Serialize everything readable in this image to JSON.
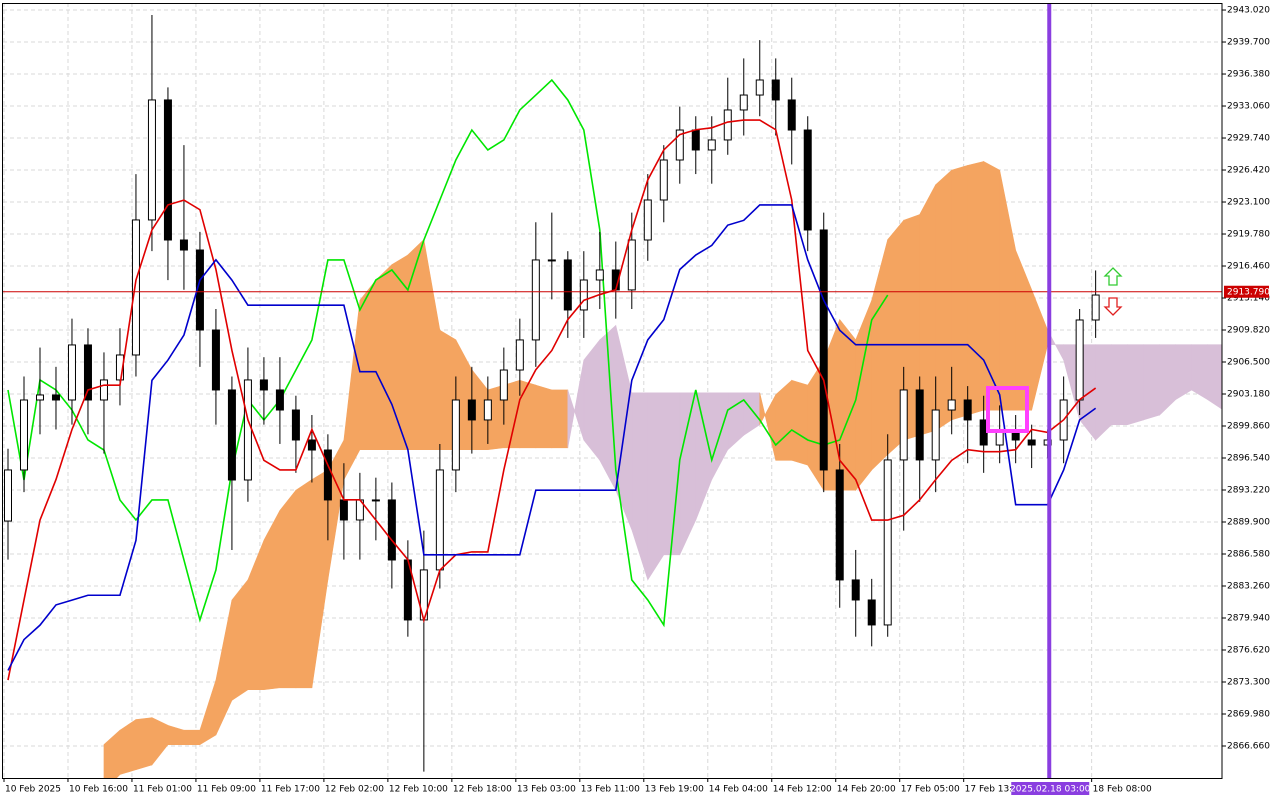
{
  "chart_data": {
    "type": "candlestick",
    "xlim": [
      -0.5,
      75.9
    ],
    "ylim": [
      2863.34,
      2944.06
    ],
    "grid": true,
    "up_color": "#ffffff",
    "down_color": "#000000",
    "wick_color": "#000000",
    "yticks": [
      {
        "value": 2943.02,
        "label": "2943.020"
      },
      {
        "value": 2939.7,
        "label": "2939.700"
      },
      {
        "value": 2936.38,
        "label": "2936.380"
      },
      {
        "value": 2933.06,
        "label": "2933.060"
      },
      {
        "value": 2929.74,
        "label": "2929.740"
      },
      {
        "value": 2926.42,
        "label": "2926.420"
      },
      {
        "value": 2923.1,
        "label": "2923.100"
      },
      {
        "value": 2919.78,
        "label": "2919.780"
      },
      {
        "value": 2916.46,
        "label": "2916.460"
      },
      {
        "value": 2913.14,
        "label": "2913.140"
      },
      {
        "value": 2909.82,
        "label": "2909.820"
      },
      {
        "value": 2906.5,
        "label": "2906.500"
      },
      {
        "value": 2903.18,
        "label": "2903.180"
      },
      {
        "value": 2899.86,
        "label": "2899.860"
      },
      {
        "value": 2896.54,
        "label": "2896.540"
      },
      {
        "value": 2893.22,
        "label": "2893.220"
      },
      {
        "value": 2889.9,
        "label": "2889.900"
      },
      {
        "value": 2886.58,
        "label": "2886.580"
      },
      {
        "value": 2883.26,
        "label": "2883.260"
      },
      {
        "value": 2879.94,
        "label": "2879.940"
      },
      {
        "value": 2876.62,
        "label": "2876.620"
      },
      {
        "value": 2873.3,
        "label": "2873.300"
      },
      {
        "value": 2869.98,
        "label": "2869.980"
      },
      {
        "value": 2866.66,
        "label": "2866.660"
      }
    ],
    "xticks": [
      {
        "value": -0.25,
        "label": "10 Feb 2025"
      },
      {
        "value": 3.75,
        "label": "10 Feb 16:00"
      },
      {
        "value": 7.75,
        "label": "11 Feb 01:00"
      },
      {
        "value": 11.75,
        "label": "11 Feb 09:00"
      },
      {
        "value": 15.75,
        "label": "11 Feb 17:00"
      },
      {
        "value": 19.75,
        "label": "12 Feb 02:00"
      },
      {
        "value": 23.75,
        "label": "12 Feb 10:00"
      },
      {
        "value": 27.75,
        "label": "12 Feb 18:00"
      },
      {
        "value": 31.75,
        "label": "13 Feb 03:00"
      },
      {
        "value": 35.75,
        "label": "13 Feb 11:00"
      },
      {
        "value": 39.75,
        "label": "13 Feb 19:00"
      },
      {
        "value": 43.75,
        "label": "14 Feb 04:00"
      },
      {
        "value": 47.75,
        "label": "14 Feb 12:00"
      },
      {
        "value": 51.75,
        "label": "14 Feb 20:00"
      },
      {
        "value": 55.75,
        "label": "17 Feb 05:00"
      },
      {
        "value": 59.75,
        "label": "17 Feb 13:00"
      },
      {
        "value": 67.75,
        "label": "18 Feb 08:00"
      }
    ],
    "ohlc": [
      [
        2890.0,
        2897.5,
        2886.0,
        2895.3
      ],
      [
        2895.3,
        2905.0,
        2893.0,
        2902.56
      ],
      [
        2902.56,
        2908.0,
        2899.0,
        2903.08
      ],
      [
        2903.08,
        2906.0,
        2899.5,
        2902.56
      ],
      [
        2902.56,
        2911.0,
        2900.0,
        2908.27
      ],
      [
        2908.27,
        2910.0,
        2899.0,
        2902.56
      ],
      [
        2902.56,
        2907.5,
        2897.0,
        2904.64
      ],
      [
        2904.64,
        2910.0,
        2902.0,
        2907.23
      ],
      [
        2907.23,
        2926.0,
        2905.0,
        2921.24
      ],
      [
        2921.24,
        2942.5,
        2918.0,
        2933.69
      ],
      [
        2933.69,
        2935.0,
        2915.0,
        2919.16
      ],
      [
        2919.16,
        2929.0,
        2914.0,
        2918.12
      ],
      [
        2918.12,
        2920.0,
        2906.0,
        2909.82
      ],
      [
        2909.82,
        2912.0,
        2900.0,
        2903.6
      ],
      [
        2903.6,
        2905.0,
        2887.0,
        2894.26
      ],
      [
        2894.26,
        2908.0,
        2892.0,
        2904.64
      ],
      [
        2904.64,
        2907.0,
        2900.0,
        2903.6
      ],
      [
        2903.6,
        2907.0,
        2898.0,
        2901.52
      ],
      [
        2901.52,
        2903.0,
        2895.0,
        2898.41
      ],
      [
        2898.41,
        2901.0,
        2894.0,
        2897.37
      ],
      [
        2897.37,
        2899.0,
        2888.0,
        2892.19
      ],
      [
        2892.19,
        2896.0,
        2886.0,
        2890.11
      ],
      [
        2890.11,
        2895.0,
        2886.0,
        2892.19
      ],
      [
        2892.19,
        2894.5,
        2888.0,
        2892.19
      ],
      [
        2892.19,
        2894.0,
        2883.0,
        2885.96
      ],
      [
        2885.96,
        2888.0,
        2878.0,
        2879.74
      ],
      [
        2879.74,
        2889.0,
        2864.0,
        2884.93
      ],
      [
        2884.93,
        2898.0,
        2883.0,
        2895.3
      ],
      [
        2895.3,
        2905.0,
        2893.0,
        2902.56
      ],
      [
        2902.56,
        2906.0,
        2897.0,
        2900.49
      ],
      [
        2900.49,
        2905.0,
        2898.0,
        2902.56
      ],
      [
        2902.56,
        2908.0,
        2900.0,
        2905.67
      ],
      [
        2905.67,
        2911.0,
        2903.0,
        2908.79
      ],
      [
        2908.79,
        2921.0,
        2906.0,
        2917.09
      ],
      [
        2917.09,
        2922.0,
        2913.0,
        2917.09
      ],
      [
        2917.09,
        2918.0,
        2909.0,
        2911.9
      ],
      [
        2911.9,
        2918.0,
        2909.0,
        2915.01
      ],
      [
        2915.01,
        2920.0,
        2912.0,
        2916.05
      ],
      [
        2916.05,
        2919.0,
        2911.0,
        2913.98
      ],
      [
        2913.98,
        2922.0,
        2912.0,
        2919.16
      ],
      [
        2919.16,
        2926.0,
        2917.0,
        2923.31
      ],
      [
        2923.31,
        2929.0,
        2921.0,
        2927.46
      ],
      [
        2927.46,
        2933.0,
        2925.0,
        2930.57
      ],
      [
        2930.57,
        2932.0,
        2926.0,
        2928.5
      ],
      [
        2928.5,
        2932.0,
        2925.0,
        2929.54
      ],
      [
        2929.54,
        2936.0,
        2928.0,
        2932.65
      ],
      [
        2932.65,
        2938.0,
        2930.0,
        2934.2
      ],
      [
        2934.2,
        2939.9,
        2932.0,
        2935.76
      ],
      [
        2935.76,
        2938.0,
        2930.0,
        2933.69
      ],
      [
        2933.69,
        2936.0,
        2927.0,
        2930.57
      ],
      [
        2930.57,
        2932.0,
        2918.0,
        2920.2
      ],
      [
        2920.2,
        2922.0,
        2893.0,
        2895.3
      ],
      [
        2895.3,
        2898.0,
        2881.0,
        2883.89
      ],
      [
        2883.89,
        2887.0,
        2878.0,
        2881.81
      ],
      [
        2881.81,
        2884.0,
        2877.0,
        2879.22
      ],
      [
        2879.22,
        2899.0,
        2878.0,
        2896.34
      ],
      [
        2896.34,
        2906.0,
        2889.0,
        2903.6
      ],
      [
        2903.6,
        2905.0,
        2892.0,
        2896.34
      ],
      [
        2896.34,
        2905.0,
        2893.0,
        2901.52
      ],
      [
        2901.52,
        2906.0,
        2899.0,
        2902.56
      ],
      [
        2902.56,
        2904.0,
        2896.0,
        2900.49
      ],
      [
        2900.49,
        2903.0,
        2895.0,
        2897.89
      ],
      [
        2897.89,
        2902.0,
        2896.0,
        2899.45
      ],
      [
        2899.45,
        2901.0,
        2896.0,
        2898.41
      ],
      [
        2898.41,
        2900.0,
        2895.5,
        2897.89
      ],
      [
        2897.89,
        2899.5,
        2896.5,
        2898.41
      ],
      [
        2898.41,
        2905.0,
        2896.0,
        2902.56
      ],
      [
        2902.56,
        2912.0,
        2901.0,
        2910.86
      ],
      [
        2910.86,
        2916.0,
        2909.0,
        2913.45
      ],
      null,
      null,
      null,
      null,
      null,
      null,
      null,
      null
    ],
    "cloud": {
      "up_color": "#f4a460",
      "down_color": "#d8bfd8",
      "a": [
        null,
        null,
        null,
        null,
        null,
        null,
        2866.8,
        2868.3,
        2869.4,
        2869.6,
        2868.8,
        2868.3,
        2868.3,
        2873.5,
        2881.8,
        2883.9,
        2888.0,
        2891.1,
        2893.2,
        2894.3,
        2895.3,
        2898.4,
        2912.9,
        2915.0,
        2916.6,
        2917.6,
        2919.2,
        2909.8,
        2908.8,
        2905.7,
        2903.6,
        2904.1,
        2904.6,
        2904.1,
        2903.6,
        2903.6,
        2898.4,
        2896.3,
        2893.2,
        2889.1,
        2883.9,
        2886.5,
        2886.5,
        2890.1,
        2894.3,
        2897.4,
        2898.9,
        2900.0,
        2903.1,
        2904.6,
        2904.1,
        2906.7,
        2910.9,
        2908.8,
        2912.9,
        2919.2,
        2921.2,
        2921.8,
        2924.9,
        2926.4,
        2926.9,
        2927.3,
        2926.4,
        2918.1,
        2914.0,
        2909.8,
        2906.7,
        2900.5,
        2898.4,
        2900.0,
        2900.0,
        2900.5,
        2901.0,
        2902.6,
        2903.6,
        2902.6,
        2901.5
      ],
      "b": [
        null,
        null,
        null,
        null,
        null,
        null,
        2862.0,
        2863.7,
        2864.2,
        2864.7,
        2866.8,
        2866.8,
        2866.8,
        2867.8,
        2871.4,
        2872.5,
        2872.5,
        2872.7,
        2872.7,
        2872.7,
        2883.9,
        2894.3,
        2897.4,
        2897.4,
        2897.4,
        2897.4,
        2897.4,
        2897.4,
        2897.4,
        2897.4,
        2897.4,
        2897.6,
        2897.6,
        2897.6,
        2897.6,
        2897.6,
        2906.7,
        2908.8,
        2910.3,
        2903.3,
        2903.3,
        2903.3,
        2903.3,
        2903.3,
        2903.3,
        2903.3,
        2903.3,
        2903.3,
        2896.3,
        2896.3,
        2895.8,
        2893.2,
        2893.2,
        2893.2,
        2895.3,
        2896.9,
        2898.4,
        2898.9,
        2899.4,
        2900.5,
        2901.0,
        2901.5,
        2901.5,
        2901.5,
        2901.5,
        2908.3,
        2908.3,
        2908.3,
        2908.3,
        2908.3,
        2908.3,
        2908.3,
        2908.3,
        2908.3,
        2908.3,
        2908.3,
        2908.3
      ]
    },
    "lines": [
      {
        "color": "#00e600",
        "values": [
          2903.6,
          2894.26,
          2904.64,
          2903.6,
          2901.52,
          2898.41,
          2897.37,
          2892.19,
          2890.11,
          2892.19,
          2892.19,
          2885.96,
          2879.74,
          2884.93,
          2895.3,
          2902.56,
          2900.49,
          2902.56,
          2905.67,
          2908.79,
          2917.09,
          2917.09,
          2911.9,
          2915.01,
          2916.05,
          2913.98,
          2919.16,
          2923.31,
          2927.46,
          2930.57,
          2928.5,
          2929.54,
          2932.65,
          2934.2,
          2935.76,
          2933.69,
          2930.57,
          2920.2,
          2895.3,
          2883.89,
          2881.81,
          2879.22,
          2896.34,
          2903.6,
          2896.34,
          2901.52,
          2902.56,
          2900.49,
          2897.89,
          2899.45,
          2898.41,
          2897.89,
          2898.41,
          2902.56,
          2910.86,
          2913.45,
          null,
          null,
          null,
          null,
          null,
          null,
          null,
          null,
          null,
          null,
          null,
          null,
          null,
          null,
          null,
          null,
          null,
          null,
          null,
          null,
          null
        ]
      },
      {
        "color": "#e00000",
        "values": [
          2873.5,
          2881.8,
          2890.1,
          2894.3,
          2899.5,
          2903.6,
          2904.1,
          2904.1,
          2915.0,
          2920.2,
          2922.8,
          2923.3,
          2922.3,
          2916.1,
          2907.7,
          2900.5,
          2896.3,
          2895.3,
          2895.3,
          2899.5,
          2895.8,
          2892.2,
          2892.2,
          2890.1,
          2888.0,
          2886.0,
          2879.7,
          2884.9,
          2886.5,
          2886.8,
          2886.8,
          2895.3,
          2902.6,
          2905.7,
          2907.7,
          2910.9,
          2912.9,
          2913.5,
          2914.0,
          2920.2,
          2925.4,
          2928.5,
          2930.1,
          2930.6,
          2930.8,
          2931.4,
          2931.6,
          2931.6,
          2930.6,
          2923.3,
          2907.7,
          2904.6,
          2896.3,
          2894.3,
          2890.1,
          2890.1,
          2890.6,
          2892.2,
          2894.3,
          2896.3,
          2897.4,
          2897.2,
          2897.2,
          2897.4,
          2899.5,
          2899.2,
          2900.5,
          2902.6,
          2903.8,
          null,
          null,
          null,
          null,
          null,
          null,
          null,
          null
        ]
      },
      {
        "color": "#0000cc",
        "values": [
          2874.5,
          2877.7,
          2879.2,
          2881.3,
          2881.8,
          2882.3,
          2882.3,
          2882.3,
          2888.0,
          2904.6,
          2906.7,
          2909.3,
          2915.0,
          2917.1,
          2915.0,
          2912.4,
          2912.4,
          2912.4,
          2912.4,
          2912.4,
          2912.4,
          2912.4,
          2905.5,
          2905.5,
          2902.1,
          2897.4,
          2886.5,
          2886.5,
          2886.5,
          2886.5,
          2886.5,
          2886.5,
          2886.5,
          2893.2,
          2893.2,
          2893.2,
          2893.2,
          2893.2,
          2893.2,
          2904.6,
          2908.8,
          2910.9,
          2916.1,
          2917.6,
          2918.6,
          2920.7,
          2921.2,
          2922.8,
          2922.8,
          2922.8,
          2917.1,
          2912.9,
          2909.8,
          2908.3,
          2908.3,
          2908.3,
          2908.3,
          2908.3,
          2908.3,
          2908.3,
          2908.3,
          2906.7,
          2903.1,
          2891.7,
          2891.7,
          2891.7,
          2895.3,
          2900.5,
          2901.7,
          null,
          null,
          null,
          null,
          null,
          null,
          null,
          null
        ]
      }
    ],
    "price_line": {
      "value": 2913.79,
      "label": "2913.790",
      "color": "#cc0000"
    },
    "marker": {
      "x": 65.1,
      "label": "2025.02.18 03:00",
      "color": "#8a3ee0"
    }
  }
}
